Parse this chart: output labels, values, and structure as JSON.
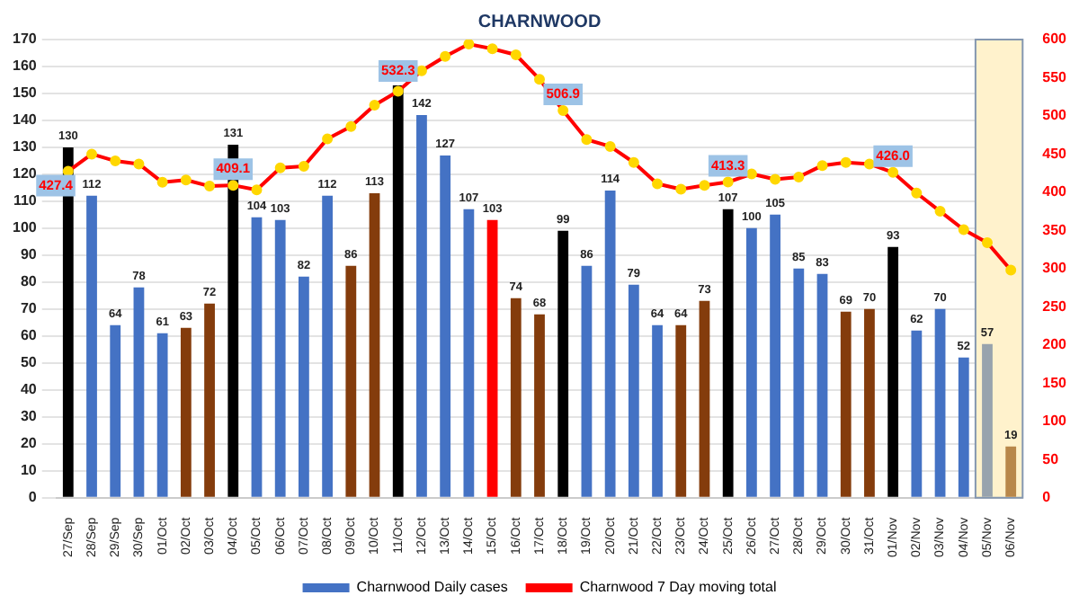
{
  "chart_data": {
    "type": "bar",
    "title": "CHARNWOOD",
    "categories": [
      "27/Sep",
      "28/Sep",
      "29/Sep",
      "30/Sep",
      "01/Oct",
      "02/Oct",
      "03/Oct",
      "04/Oct",
      "05/Oct",
      "06/Oct",
      "07/Oct",
      "08/Oct",
      "09/Oct",
      "10/Oct",
      "11/Oct",
      "12/Oct",
      "13/Oct",
      "14/Oct",
      "15/Oct",
      "16/Oct",
      "17/Oct",
      "18/Oct",
      "19/Oct",
      "20/Oct",
      "21/Oct",
      "22/Oct",
      "23/Oct",
      "24/Oct",
      "25/Oct",
      "26/Oct",
      "27/Oct",
      "28/Oct",
      "29/Oct",
      "30/Oct",
      "31/Oct",
      "01/Nov",
      "02/Nov",
      "03/Nov",
      "04/Nov",
      "05/Nov",
      "06/Nov"
    ],
    "series": [
      {
        "name": "Charnwood Daily cases",
        "color": "#4472c4",
        "values": [
          130,
          112,
          64,
          78,
          61,
          63,
          72,
          131,
          104,
          103,
          82,
          112,
          86,
          113,
          153,
          142,
          127,
          107,
          103,
          74,
          68,
          99,
          86,
          114,
          79,
          64,
          64,
          73,
          107,
          100,
          105,
          85,
          83,
          69,
          70,
          93,
          62,
          70,
          52,
          57,
          19
        ],
        "colors": [
          "#000000",
          "#4472c4",
          "#4472c4",
          "#4472c4",
          "#4472c4",
          "#843c0c",
          "#843c0c",
          "#000000",
          "#4472c4",
          "#4472c4",
          "#4472c4",
          "#4472c4",
          "#843c0c",
          "#843c0c",
          "#000000",
          "#4472c4",
          "#4472c4",
          "#4472c4",
          "#ff0000",
          "#843c0c",
          "#843c0c",
          "#000000",
          "#4472c4",
          "#4472c4",
          "#4472c4",
          "#4472c4",
          "#843c0c",
          "#843c0c",
          "#000000",
          "#4472c4",
          "#4472c4",
          "#4472c4",
          "#4472c4",
          "#843c0c",
          "#843c0c",
          "#000000",
          "#4472c4",
          "#4472c4",
          "#4472c4",
          "#98a3ad",
          "#b8874a"
        ],
        "value_labels": [
          "130",
          "112",
          "64",
          "78",
          "61",
          "63",
          "72",
          "131",
          "104",
          "103",
          "82",
          "112",
          "86",
          "113",
          null,
          "142",
          "127",
          "107",
          "103",
          "74",
          "68",
          "99",
          "86",
          "114",
          "79",
          "64",
          "64",
          "73",
          "107",
          "100",
          "105",
          "85",
          "83",
          "69",
          "70",
          "93",
          "62",
          "70",
          "52",
          "57",
          "19"
        ]
      },
      {
        "name": "Charnwood 7 Day moving total",
        "type": "line",
        "axis": "y2",
        "color": "#ff0000",
        "marker": "circle",
        "values": [
          427.4,
          450,
          441,
          437,
          413,
          416,
          408,
          409.1,
          403,
          432,
          434,
          470,
          486,
          514,
          532.3,
          559,
          578,
          594,
          588,
          580,
          548,
          506.9,
          469,
          460,
          439,
          411,
          404,
          409,
          413.3,
          424,
          417,
          420,
          435,
          439,
          437,
          426.0,
          399,
          375,
          351,
          334,
          298
        ],
        "value_labels": [
          "427.4",
          null,
          null,
          null,
          null,
          null,
          null,
          "409.1",
          null,
          null,
          null,
          null,
          null,
          null,
          "532.3",
          null,
          null,
          null,
          null,
          null,
          null,
          "506.9",
          null,
          null,
          null,
          null,
          null,
          null,
          "413.3",
          null,
          null,
          null,
          null,
          null,
          null,
          "426.0",
          null,
          null,
          null,
          null,
          null
        ]
      }
    ],
    "ylim": [
      0,
      170
    ],
    "yticks": [
      0,
      10,
      20,
      30,
      40,
      50,
      60,
      70,
      80,
      90,
      100,
      110,
      120,
      130,
      140,
      150,
      160,
      170
    ],
    "y2lim": [
      0,
      600
    ],
    "y2ticks": [
      0,
      50,
      100,
      150,
      200,
      250,
      300,
      350,
      400,
      450,
      500,
      550,
      600
    ],
    "grid": "y",
    "legend": "bottom",
    "bands": [
      {
        "axis": "x",
        "from": "05/Nov",
        "to": "06/Nov",
        "color": "#fff2cc"
      }
    ]
  }
}
